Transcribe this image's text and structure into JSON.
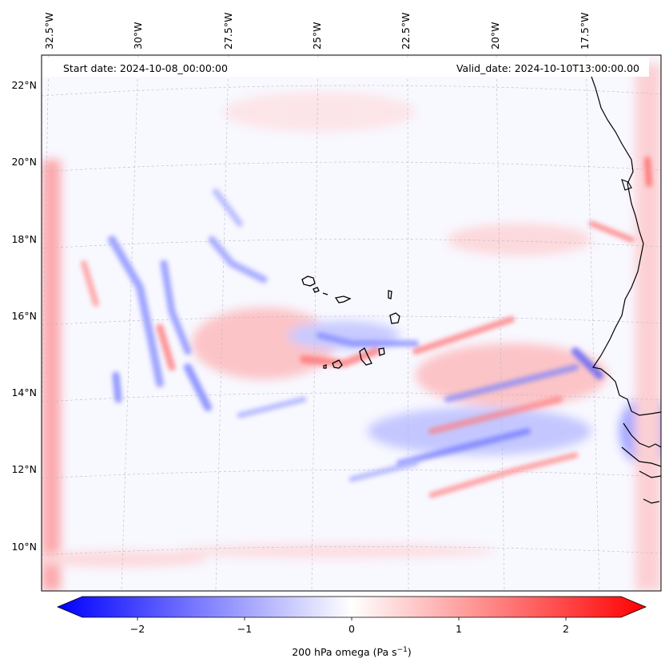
{
  "map": {
    "start_date": "Start date: 2024-10-08_00:00:00",
    "valid_date": "Valid_date: 2024-10-10T13:00:00.00",
    "lon_labels": [
      "32.5°W",
      "30°W",
      "27.5°W",
      "25°W",
      "22.5°W",
      "20°W",
      "17.5°W"
    ],
    "lat_labels": [
      "22°N",
      "20°N",
      "18°N",
      "16°N",
      "14°N",
      "12°N",
      "10°N"
    ],
    "colorbar": {
      "ticks": [
        "−2",
        "−1",
        "0",
        "1",
        "2"
      ],
      "label": "200 hPa omega (Pa s",
      "label_sup": "−1",
      "label_end": ")",
      "min_color": "#0000ff",
      "mid_color": "#ffffff",
      "max_color": "#ff0000"
    },
    "colors": {
      "negative": "#4a55ff",
      "positive": "#ff4a4a",
      "background": "#f8f8ff",
      "coast": "#000000",
      "grid": "#b8b8c8"
    }
  }
}
